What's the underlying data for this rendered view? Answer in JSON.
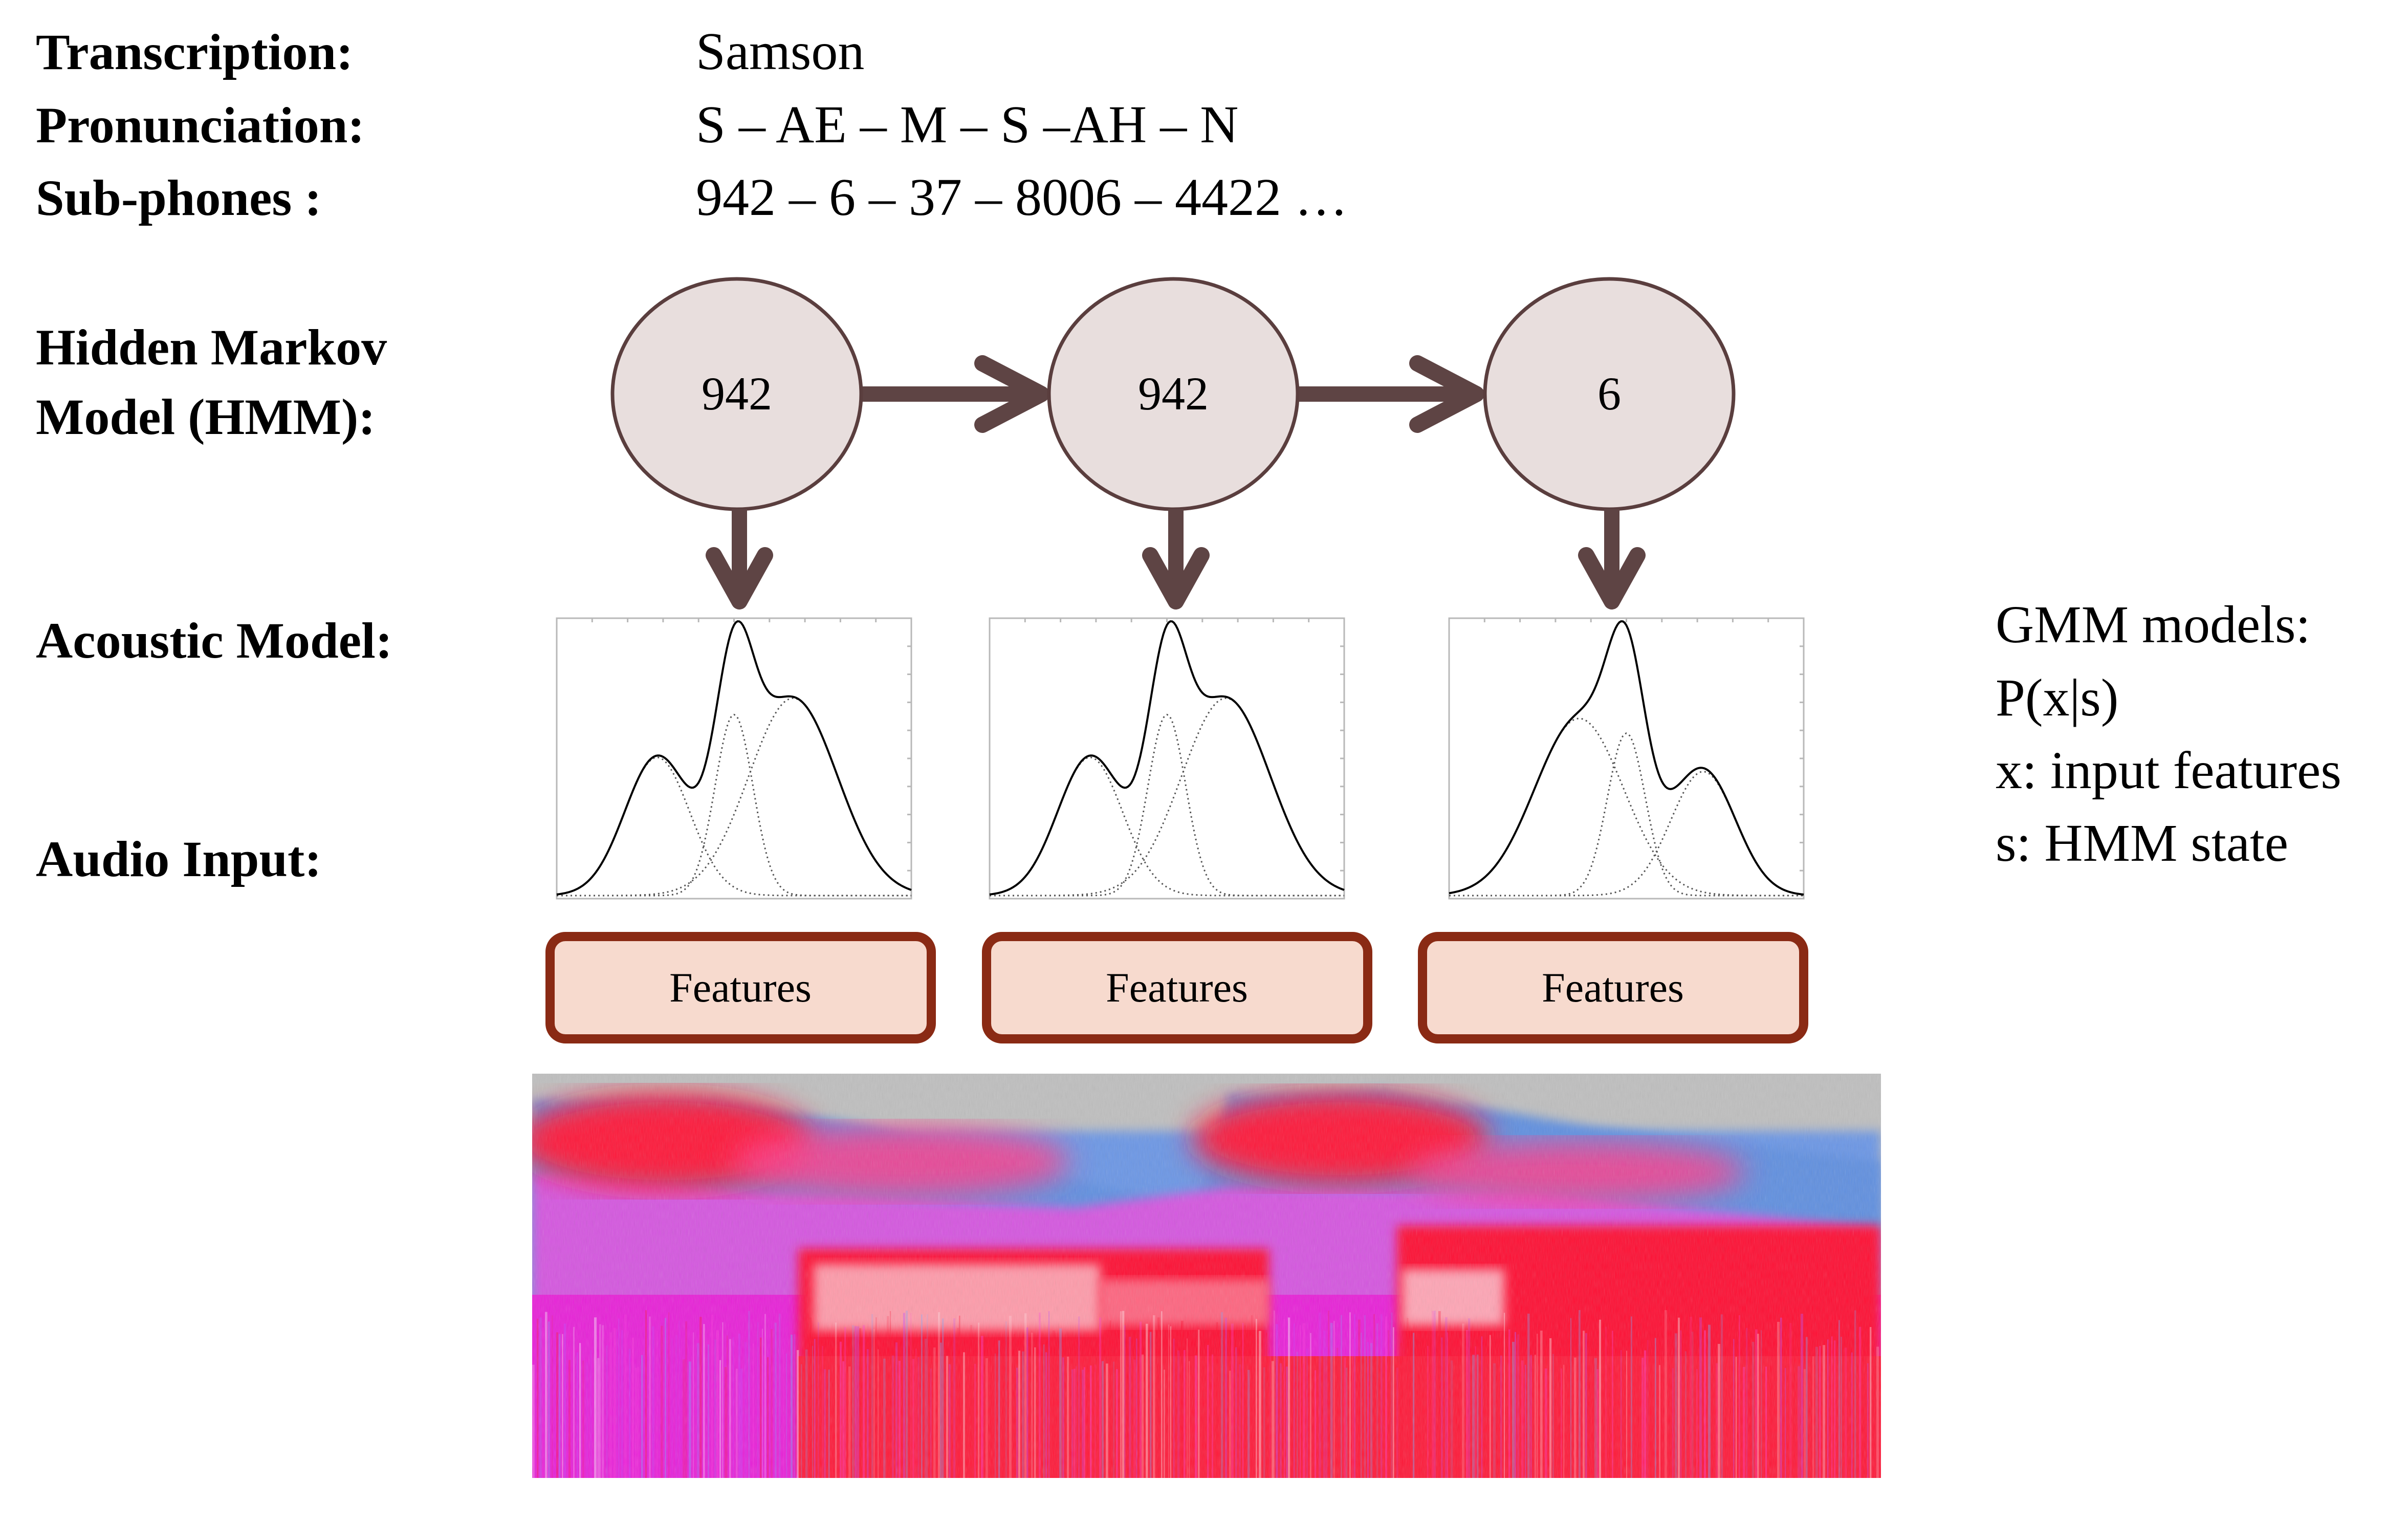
{
  "header": {
    "transcription_label": "Transcription:",
    "transcription_value": "Samson",
    "pronunciation_label": "Pronunciation:",
    "pronunciation_value": "S – AE – M – S –AH – N",
    "subphones_label": "Sub-phones :",
    "subphones_value": "942 – 6 – 37 – 8006 – 4422 …"
  },
  "hmm": {
    "label_line1": "Hidden Markov",
    "label_line2": "Model (HMM):",
    "states": [
      {
        "label": "942"
      },
      {
        "label": "942"
      },
      {
        "label": "6"
      }
    ]
  },
  "acoustic": {
    "label": "Acoustic Model:",
    "plots": [
      {
        "components": [
          {
            "mean": -1.3,
            "sd": 0.55,
            "weight": 0.42
          },
          {
            "mean": 0.0,
            "sd": 0.32,
            "weight": 0.55
          },
          {
            "mean": 1.0,
            "sd": 0.75,
            "weight": 0.6
          }
        ]
      },
      {
        "components": [
          {
            "mean": -1.3,
            "sd": 0.55,
            "weight": 0.42
          },
          {
            "mean": 0.0,
            "sd": 0.32,
            "weight": 0.55
          },
          {
            "mean": 1.0,
            "sd": 0.75,
            "weight": 0.6
          }
        ]
      },
      {
        "components": [
          {
            "mean": -0.8,
            "sd": 0.75,
            "weight": 0.6
          },
          {
            "mean": 0.0,
            "sd": 0.32,
            "weight": 0.55
          },
          {
            "mean": 1.3,
            "sd": 0.55,
            "weight": 0.42
          }
        ]
      }
    ]
  },
  "audio": {
    "label": "Audio Input:"
  },
  "features": {
    "boxes": [
      {
        "label": "Features"
      },
      {
        "label": "Features"
      },
      {
        "label": "Features"
      }
    ]
  },
  "gmm": {
    "line1": "GMM models:",
    "line2": "P(x|s)",
    "line3": "x: input features",
    "line4": "s: HMM state"
  },
  "colors": {
    "node_fill": "#e8dedd",
    "node_stroke": "#5a3e3e",
    "arrow": "#5e4444",
    "feature_fill": "#f7dace",
    "feature_stroke": "#8a2a14",
    "spec_background": "#bfbfbf",
    "spec_low": "#5e8fe0",
    "spec_mid": "#ff2ad4",
    "spec_high": "#ff1030"
  }
}
